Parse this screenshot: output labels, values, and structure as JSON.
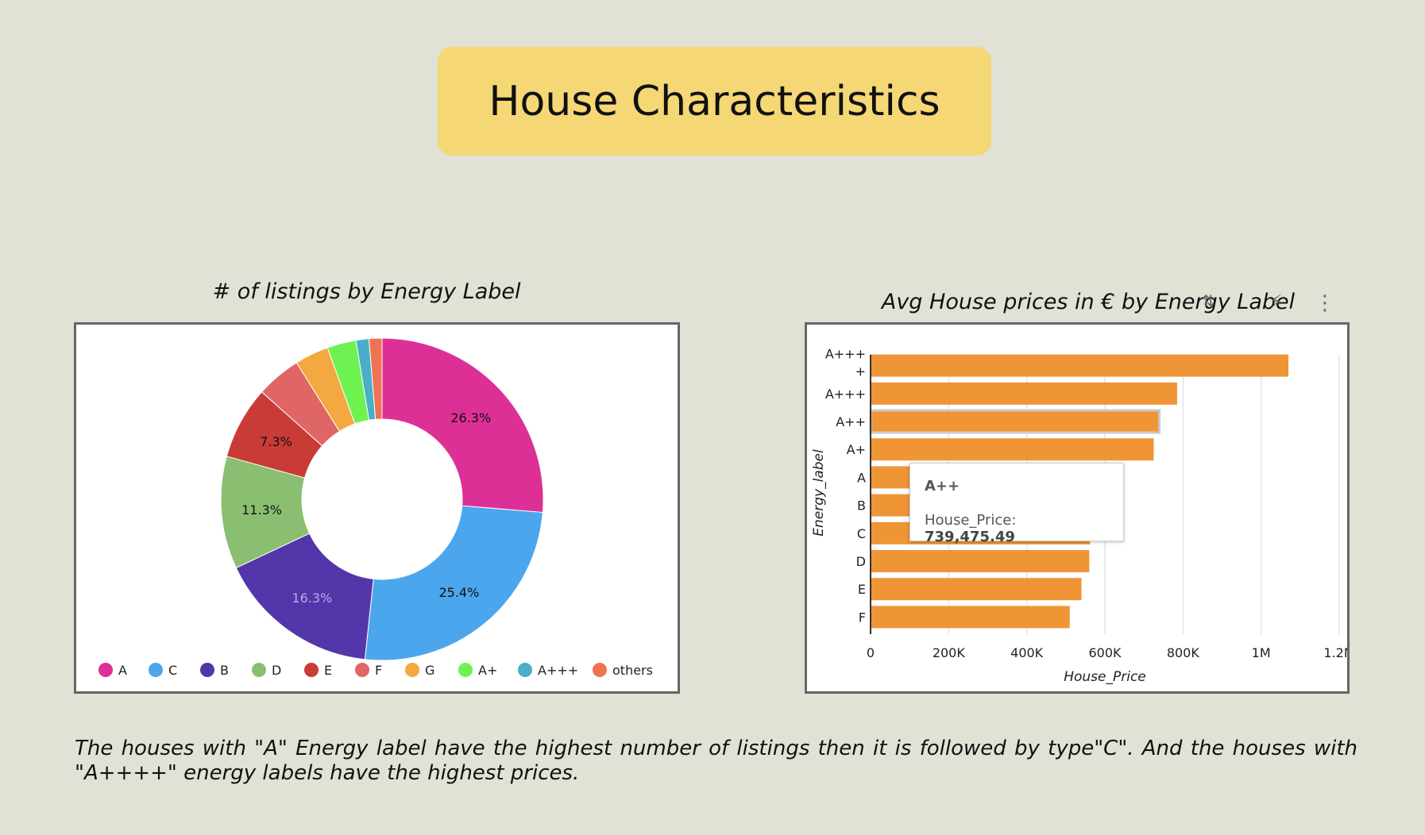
{
  "page_title": "House Characteristics",
  "note": "The houses with \"A\" Energy label have the highest number of listings then it is followed by  type\"C\". And the houses with \"A++++\" energy labels have the highest prices.",
  "icons": {
    "sort": "sort-az-icon",
    "bolt": "lightning-bolt-icon",
    "menu": "more-vertical-icon"
  },
  "chart_data": [
    {
      "type": "pie",
      "donut": true,
      "title": "# of listings by Energy Label",
      "slices": [
        {
          "label": "A",
          "value": 26.3,
          "color": "#dd3096",
          "show_label": true,
          "label_text": "26.3%"
        },
        {
          "label": "C",
          "value": 25.4,
          "color": "#4ba6ed",
          "show_label": true,
          "label_text": "25.4%"
        },
        {
          "label": "B",
          "value": 16.3,
          "color": "#5436ab",
          "show_label": true,
          "label_text": "16.3%"
        },
        {
          "label": "D",
          "value": 11.3,
          "color": "#8abf72",
          "show_label": true,
          "label_text": "11.3%"
        },
        {
          "label": "E",
          "value": 7.3,
          "color": "#c83b37",
          "show_label": true,
          "label_text": "7.3%"
        },
        {
          "label": "F",
          "value": 4.5,
          "color": "#e06666",
          "show_label": false,
          "label_text": ""
        },
        {
          "label": "G",
          "value": 3.4,
          "color": "#f3a840",
          "show_label": false,
          "label_text": ""
        },
        {
          "label": "A+",
          "value": 2.9,
          "color": "#6ef252",
          "show_label": false,
          "label_text": ""
        },
        {
          "label": "A+++",
          "value": 1.3,
          "color": "#4aaec8",
          "show_label": false,
          "label_text": ""
        },
        {
          "label": "others",
          "value": 1.3,
          "color": "#ee7352",
          "show_label": false,
          "label_text": ""
        }
      ],
      "legend_position": "bottom"
    },
    {
      "type": "bar",
      "orientation": "horizontal",
      "title": "Avg House prices in € by Energy Label",
      "xlabel": "House_Price",
      "ylabel": "Energy_label",
      "categories": [
        "A+++\n+",
        "A+++",
        "A++",
        "A+",
        "A",
        "B",
        "C",
        "D",
        "E",
        "F"
      ],
      "values": [
        1070000,
        785000,
        739475.49,
        725000,
        575000,
        560000,
        562000,
        560000,
        540000,
        510000
      ],
      "bar_color": "#f09536",
      "xlim": [
        0,
        1200000
      ],
      "x_ticks": [
        0,
        200000,
        400000,
        600000,
        800000,
        1000000,
        1200000
      ],
      "x_tick_labels": [
        "0",
        "200K",
        "400K",
        "600K",
        "800K",
        "1M",
        "1.2M"
      ],
      "grid": true,
      "highlighted_category": "A++",
      "tooltip": {
        "title": "A++",
        "field": "House_Price",
        "value": "739,475.49"
      }
    }
  ]
}
